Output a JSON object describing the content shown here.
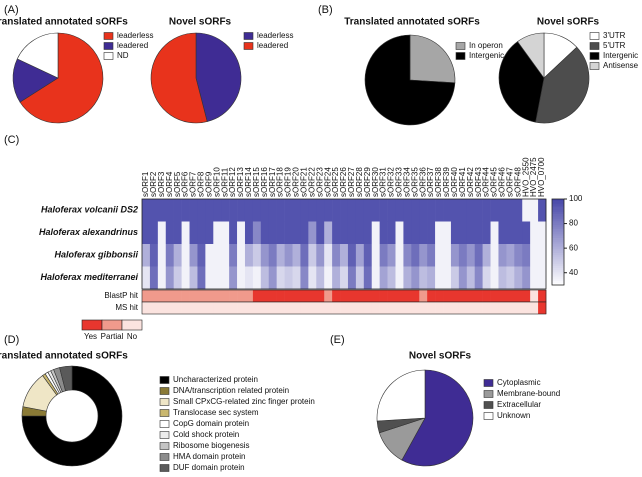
{
  "panel_labels": [
    "(A)",
    "(B)",
    "(C)",
    "(D)",
    "(E)"
  ],
  "chart_data": [
    {
      "type": "pie",
      "title": "Translated annotated sORFs",
      "categories": [
        "leaderless",
        "leadered",
        "ND"
      ],
      "values": [
        66,
        16,
        18
      ],
      "colors": [
        "#e8331c",
        "#3f2c94",
        "#ffffff"
      ]
    },
    {
      "type": "pie",
      "title": "Novel sORFs",
      "categories": [
        "leaderless",
        "leadered"
      ],
      "values": [
        46,
        54
      ],
      "colors": [
        "#3f2c94",
        "#e8331c"
      ]
    },
    {
      "type": "pie",
      "title": "Translated annotated sORFs",
      "categories": [
        "In operon",
        "Intergenic"
      ],
      "values": [
        26,
        74
      ],
      "colors": [
        "#a6a6a6",
        "#000000"
      ]
    },
    {
      "type": "pie",
      "title": "Novel sORFs",
      "categories": [
        "3'UTR",
        "5'UTR",
        "Intergenic",
        "Antisense"
      ],
      "values": [
        13,
        40,
        37,
        10
      ],
      "colors": [
        "#ffffff",
        "#4d4d4d",
        "#000000",
        "#d4d4d4"
      ]
    },
    {
      "type": "heatmap",
      "columns": [
        "sORF1",
        "sORF2",
        "sORF3",
        "sORF4",
        "sORF5",
        "sORF6",
        "sORF7",
        "sORF8",
        "sORF9",
        "sORF10",
        "sORF11",
        "sORF12",
        "sORF13",
        "sORF14",
        "sORF15",
        "sORF16",
        "sORF17",
        "sORF18",
        "sORF19",
        "sORF20",
        "sORF21",
        "sORF22",
        "sORF23",
        "sORF24",
        "sORF25",
        "sORF26",
        "sORF27",
        "sORF28",
        "sORF29",
        "sORF30",
        "sORF31",
        "sORF32",
        "sORF33",
        "sORF34",
        "sORF35",
        "sORF36",
        "sORF37",
        "sORF38",
        "sORF39",
        "sORF40",
        "sORF41",
        "sORF42",
        "sORF43",
        "sORF44",
        "sORF45",
        "sORF46",
        "sORF47",
        "sORF48",
        "HVO_2550",
        "HVO_2475",
        "HVO_0700"
      ],
      "rows": [
        "Haloferax volcanii DS2",
        "Haloferax alexandrinus",
        "Haloferax gibbonsii",
        "Haloferax mediterranei"
      ],
      "values": [
        [
          95,
          95,
          95,
          95,
          95,
          95,
          95,
          95,
          95,
          95,
          95,
          95,
          95,
          95,
          95,
          95,
          95,
          95,
          95,
          95,
          95,
          95,
          95,
          95,
          95,
          95,
          95,
          95,
          95,
          95,
          95,
          95,
          95,
          95,
          95,
          95,
          95,
          95,
          95,
          95,
          95,
          95,
          95,
          95,
          95,
          95,
          95,
          95,
          35,
          35,
          95
        ],
        [
          95,
          95,
          35,
          95,
          95,
          35,
          95,
          95,
          95,
          35,
          35,
          95,
          35,
          95,
          75,
          95,
          95,
          95,
          95,
          95,
          95,
          70,
          95,
          60,
          95,
          95,
          95,
          95,
          95,
          35,
          95,
          95,
          35,
          95,
          95,
          95,
          95,
          35,
          35,
          95,
          95,
          95,
          95,
          95,
          35,
          95,
          95,
          95,
          95,
          35,
          35
        ],
        [
          60,
          90,
          35,
          80,
          60,
          35,
          70,
          90,
          35,
          35,
          35,
          80,
          35,
          60,
          50,
          70,
          80,
          60,
          70,
          60,
          85,
          50,
          70,
          40,
          75,
          60,
          90,
          65,
          90,
          35,
          80,
          70,
          35,
          75,
          85,
          70,
          80,
          35,
          35,
          70,
          80,
          70,
          85,
          60,
          35,
          70,
          65,
          75,
          80,
          35,
          35
        ],
        [
          40,
          85,
          35,
          70,
          50,
          35,
          55,
          85,
          35,
          35,
          35,
          70,
          35,
          40,
          35,
          55,
          70,
          45,
          50,
          45,
          75,
          40,
          55,
          35,
          60,
          45,
          80,
          50,
          85,
          35,
          65,
          55,
          35,
          60,
          70,
          55,
          60,
          35,
          35,
          50,
          70,
          55,
          75,
          45,
          35,
          55,
          50,
          60,
          70,
          35,
          35
        ]
      ],
      "zlim": [
        30,
        100
      ],
      "zticks": [
        40,
        60,
        80,
        100
      ],
      "colors": [
        "#ffffff",
        "#4646a8"
      ],
      "annotation_rows": [
        {
          "name": "BlastP hit",
          "values": [
            1,
            1,
            1,
            1,
            1,
            1,
            1,
            1,
            1,
            1,
            1,
            1,
            1,
            1,
            0,
            0,
            0,
            0,
            0,
            0,
            0,
            0,
            0,
            1,
            0,
            0,
            0,
            0,
            0,
            0,
            0,
            0,
            0,
            0,
            0,
            1,
            0,
            0,
            0,
            0,
            0,
            0,
            0,
            0,
            0,
            0,
            0,
            0,
            0,
            2,
            0
          ]
        },
        {
          "name": "MS hit",
          "values": [
            2,
            2,
            2,
            2,
            2,
            2,
            2,
            2,
            2,
            2,
            2,
            2,
            2,
            2,
            2,
            2,
            2,
            2,
            2,
            2,
            2,
            2,
            2,
            2,
            2,
            2,
            2,
            2,
            2,
            2,
            2,
            2,
            2,
            2,
            2,
            2,
            2,
            2,
            2,
            2,
            2,
            2,
            2,
            2,
            2,
            2,
            2,
            2,
            2,
            2,
            0
          ]
        }
      ],
      "annotation_legend": {
        "labels": [
          "Yes",
          "Partial",
          "No"
        ],
        "colors": [
          "#e8362e",
          "#f09a8c",
          "#fbe3df"
        ]
      }
    },
    {
      "type": "donut",
      "title": "Translated annotated sORFs",
      "categories": [
        "Uncharacterized protein",
        "DNA/transcription related protein",
        "Small CPxCG-related zinc finger protein",
        "Translocase sec system",
        "CopG domain protein",
        "Cold shock protein",
        "Ribosome biogenesis",
        "HMA domain protein",
        "DUF domain protein"
      ],
      "values": [
        75,
        3,
        12,
        1,
        1,
        1,
        1,
        2,
        4
      ],
      "colors": [
        "#000000",
        "#8a7a36",
        "#efe6c6",
        "#c9b76e",
        "#ffffff",
        "#ececec",
        "#c4c4c4",
        "#8c8c8c",
        "#5a5a5a"
      ]
    },
    {
      "type": "pie",
      "title": "Novel sORFs",
      "categories": [
        "Cytoplasmic",
        "Membrane-bound",
        "Extracellular",
        "Unknown"
      ],
      "values": [
        58,
        12,
        4,
        26
      ],
      "colors": [
        "#3f2c94",
        "#9a9a9a",
        "#505050",
        "#ffffff"
      ]
    }
  ]
}
